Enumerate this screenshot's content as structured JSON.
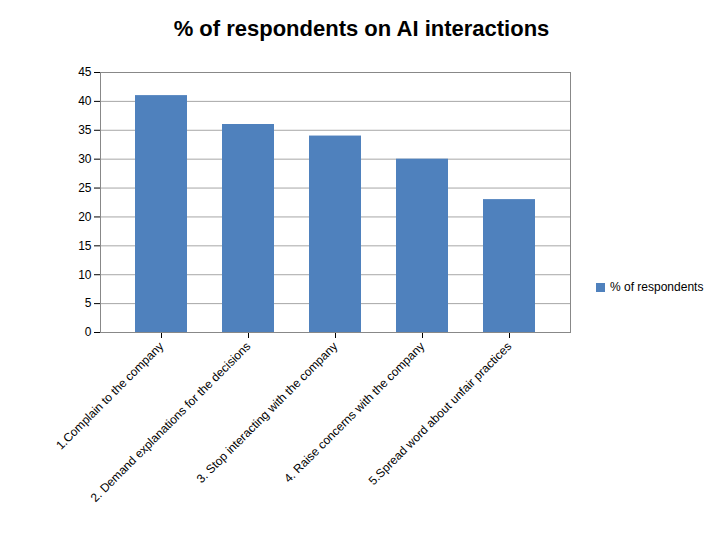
{
  "chart_data": {
    "type": "bar",
    "title": "% of respondents on AI interactions",
    "categories": [
      "1.Complain to the company",
      "2. Demand explanations for the decisions",
      "3. Stop interacting with the company",
      "4. Raise concerns with the company",
      "5.Spread word about unfair practices"
    ],
    "series": [
      {
        "name": "% of respondents",
        "color": "#4f81bd",
        "values": [
          41,
          36,
          34,
          30,
          23
        ]
      }
    ],
    "ylim": [
      0,
      45
    ],
    "yticks": [
      0,
      5,
      10,
      15,
      20,
      25,
      30,
      35,
      40,
      45
    ],
    "grid": true,
    "legend": "right"
  }
}
